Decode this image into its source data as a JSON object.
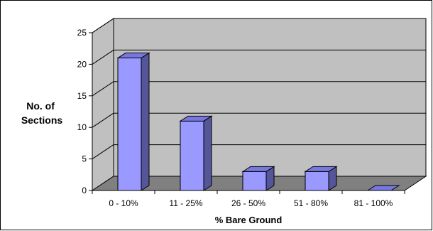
{
  "chart_data": {
    "type": "bar",
    "title": "",
    "xlabel": "% Bare Ground",
    "ylabel": "No. of Sections",
    "categories": [
      "0 - 10%",
      "11 - 25%",
      "26 - 50%",
      "51 - 80%",
      "81 - 100%"
    ],
    "values": [
      21,
      11,
      3,
      3,
      0
    ],
    "ylim": [
      0,
      25
    ],
    "yticks": [
      "0",
      "5",
      "10",
      "15",
      "20",
      "25"
    ],
    "grid": true,
    "legend": "none",
    "colors": {
      "bar_front": "#9999ff",
      "bar_top": "#7777e0",
      "bar_side": "#555599",
      "wall": "#c0c0c0",
      "floor": "#808080",
      "gridline": "#000000"
    }
  }
}
